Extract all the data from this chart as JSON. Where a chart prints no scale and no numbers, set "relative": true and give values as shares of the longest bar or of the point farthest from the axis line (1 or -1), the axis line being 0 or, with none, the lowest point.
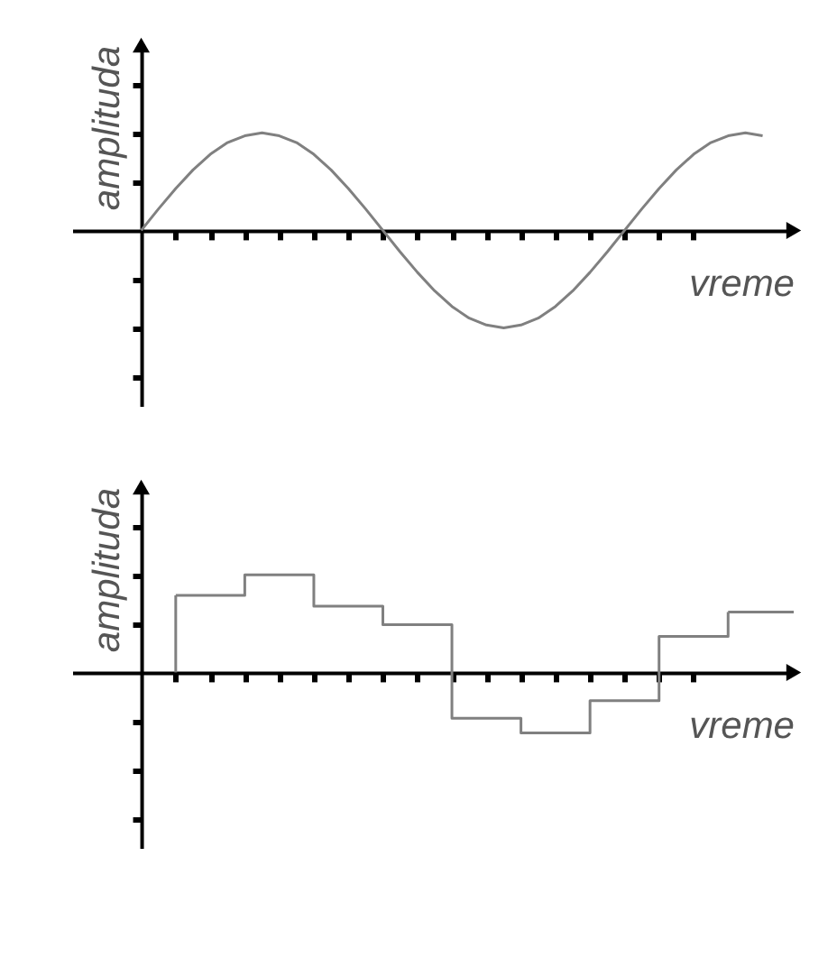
{
  "chart_data": [
    {
      "type": "line",
      "xlabel": "vreme",
      "ylabel": "amplituda",
      "relative": true,
      "categories": [
        null,
        null,
        null,
        null,
        null,
        null,
        null,
        null,
        null,
        null,
        null,
        null,
        null,
        null,
        null,
        null,
        null,
        null,
        null,
        null,
        null,
        null,
        null,
        null,
        null,
        null,
        null,
        null,
        null,
        null,
        null,
        null,
        null,
        null,
        null,
        null,
        null
      ],
      "series": [
        {
          "color": "#808080",
          "values": [
            0,
            0.22,
            0.43,
            0.62,
            0.78,
            0.9,
            0.97,
            1,
            0.97,
            0.9,
            0.78,
            0.62,
            0.43,
            0.22,
            0,
            -0.22,
            -0.43,
            -0.62,
            -0.78,
            -0.9,
            -0.97,
            -1,
            -0.97,
            -0.9,
            -0.78,
            -0.62,
            -0.43,
            -0.22,
            0,
            0.22,
            0.43,
            0.62,
            0.78,
            0.9,
            0.97,
            1,
            0.97
          ]
        }
      ]
    },
    {
      "type": "step",
      "xlabel": "vreme",
      "ylabel": "amplituda",
      "relative": true,
      "categories": [
        null,
        null,
        null,
        null,
        null,
        null,
        null,
        null,
        null
      ],
      "series": [
        {
          "color": "#808080",
          "values": [
            0.79,
            1,
            0.68,
            0.49,
            -0.47,
            -0.62,
            -0.29,
            0.37,
            0.62
          ]
        }
      ]
    }
  ]
}
